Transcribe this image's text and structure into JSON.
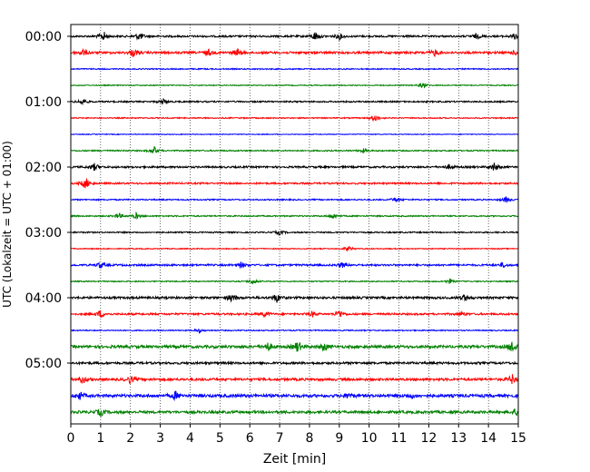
{
  "chart_data": {
    "type": "line",
    "title": "",
    "xlabel": "Zeit  [min]",
    "ylabel": "UTC (Lokalzeit = UTC + 01:00)",
    "xlim": [
      0,
      15
    ],
    "x_ticks": [
      "0",
      "1",
      "2",
      "3",
      "4",
      "5",
      "6",
      "7",
      "8",
      "9",
      "10",
      "11",
      "12",
      "13",
      "14",
      "15"
    ],
    "y_ticks": [
      "00:00",
      "01:00",
      "02:00",
      "03:00",
      "04:00",
      "05:00"
    ],
    "grid": "vertical dotted lines at each minute",
    "legend": "none",
    "trace_interval_min": 15,
    "trace_colors": [
      "#000000",
      "#ff0000",
      "#0000ff",
      "#008000"
    ],
    "series": [
      {
        "start": "00:00",
        "color": "#000000",
        "level": 1.0,
        "events": [
          [
            1.1,
            2.4
          ],
          [
            2.3,
            2.0
          ],
          [
            8.2,
            2.4
          ],
          [
            9.0,
            1.5
          ],
          [
            13.6,
            1.2
          ],
          [
            14.9,
            1.5
          ]
        ]
      },
      {
        "start": "00:15",
        "color": "#ff0000",
        "level": 1.2,
        "events": [
          [
            0.4,
            1.6
          ],
          [
            2.1,
            2.0
          ],
          [
            4.6,
            1.6
          ],
          [
            5.6,
            1.6
          ],
          [
            12.2,
            1.5
          ],
          [
            14.9,
            1.0
          ]
        ]
      },
      {
        "start": "00:30",
        "color": "#0000ff",
        "level": 0.6,
        "events": []
      },
      {
        "start": "00:45",
        "color": "#008000",
        "level": 0.5,
        "events": [
          [
            11.8,
            1.5
          ]
        ]
      },
      {
        "start": "01:00",
        "color": "#000000",
        "level": 0.8,
        "events": [
          [
            0.4,
            1.6
          ],
          [
            3.1,
            1.3
          ]
        ]
      },
      {
        "start": "01:15",
        "color": "#ff0000",
        "level": 0.6,
        "events": [
          [
            10.2,
            2.0
          ]
        ]
      },
      {
        "start": "01:30",
        "color": "#0000ff",
        "level": 0.4,
        "events": []
      },
      {
        "start": "01:45",
        "color": "#008000",
        "level": 0.7,
        "events": [
          [
            2.8,
            2.0
          ],
          [
            9.8,
            1.0
          ]
        ]
      },
      {
        "start": "02:00",
        "color": "#000000",
        "level": 1.0,
        "events": [
          [
            0.8,
            1.8
          ],
          [
            12.7,
            1.0
          ],
          [
            14.2,
            2.2
          ]
        ]
      },
      {
        "start": "02:15",
        "color": "#ff0000",
        "level": 0.9,
        "events": [
          [
            0.5,
            3.0
          ]
        ]
      },
      {
        "start": "02:30",
        "color": "#0000ff",
        "level": 0.7,
        "events": [
          [
            10.9,
            1.4
          ],
          [
            14.6,
            1.5
          ]
        ]
      },
      {
        "start": "02:45",
        "color": "#008000",
        "level": 0.7,
        "events": [
          [
            1.6,
            1.5
          ],
          [
            2.2,
            1.5
          ],
          [
            8.8,
            1.4
          ]
        ]
      },
      {
        "start": "03:00",
        "color": "#000000",
        "level": 0.7,
        "events": [
          [
            7.0,
            1.2
          ]
        ]
      },
      {
        "start": "03:15",
        "color": "#ff0000",
        "level": 0.5,
        "events": [
          [
            9.3,
            1.4
          ]
        ]
      },
      {
        "start": "03:30",
        "color": "#0000ff",
        "level": 1.0,
        "events": [
          [
            1.0,
            1.6
          ],
          [
            5.7,
            1.6
          ],
          [
            9.1,
            1.2
          ],
          [
            14.5,
            1.1
          ]
        ]
      },
      {
        "start": "03:45",
        "color": "#008000",
        "level": 0.6,
        "events": [
          [
            6.1,
            1.4
          ],
          [
            12.7,
            1.2
          ]
        ]
      },
      {
        "start": "04:00",
        "color": "#000000",
        "level": 1.2,
        "events": [
          [
            5.4,
            2.0
          ],
          [
            6.9,
            2.2
          ],
          [
            13.2,
            1.6
          ]
        ]
      },
      {
        "start": "04:15",
        "color": "#ff0000",
        "level": 1.0,
        "events": [
          [
            1.0,
            2.0
          ],
          [
            6.5,
            1.5
          ],
          [
            8.1,
            1.3
          ],
          [
            9.0,
            2.2
          ],
          [
            13.1,
            1.0
          ]
        ]
      },
      {
        "start": "04:30",
        "color": "#0000ff",
        "level": 0.6,
        "events": [
          [
            4.3,
            1.0
          ]
        ]
      },
      {
        "start": "04:45",
        "color": "#008000",
        "level": 1.5,
        "events": [
          [
            6.6,
            2.0
          ],
          [
            7.6,
            2.8
          ],
          [
            8.5,
            2.0
          ],
          [
            14.8,
            3.0
          ]
        ]
      },
      {
        "start": "05:00",
        "color": "#000000",
        "level": 1.2,
        "events": []
      },
      {
        "start": "05:15",
        "color": "#ff0000",
        "level": 1.3,
        "events": [
          [
            0.4,
            2.0
          ],
          [
            2.0,
            1.8
          ],
          [
            14.8,
            2.2
          ]
        ]
      },
      {
        "start": "05:30",
        "color": "#0000ff",
        "level": 1.6,
        "events": [
          [
            0.3,
            1.6
          ],
          [
            3.5,
            2.0
          ],
          [
            9.3,
            1.3
          ],
          [
            11.4,
            1.2
          ]
        ]
      },
      {
        "start": "05:45",
        "color": "#008000",
        "level": 1.4,
        "events": [
          [
            1.0,
            1.8
          ],
          [
            14.9,
            1.5
          ]
        ]
      }
    ]
  }
}
